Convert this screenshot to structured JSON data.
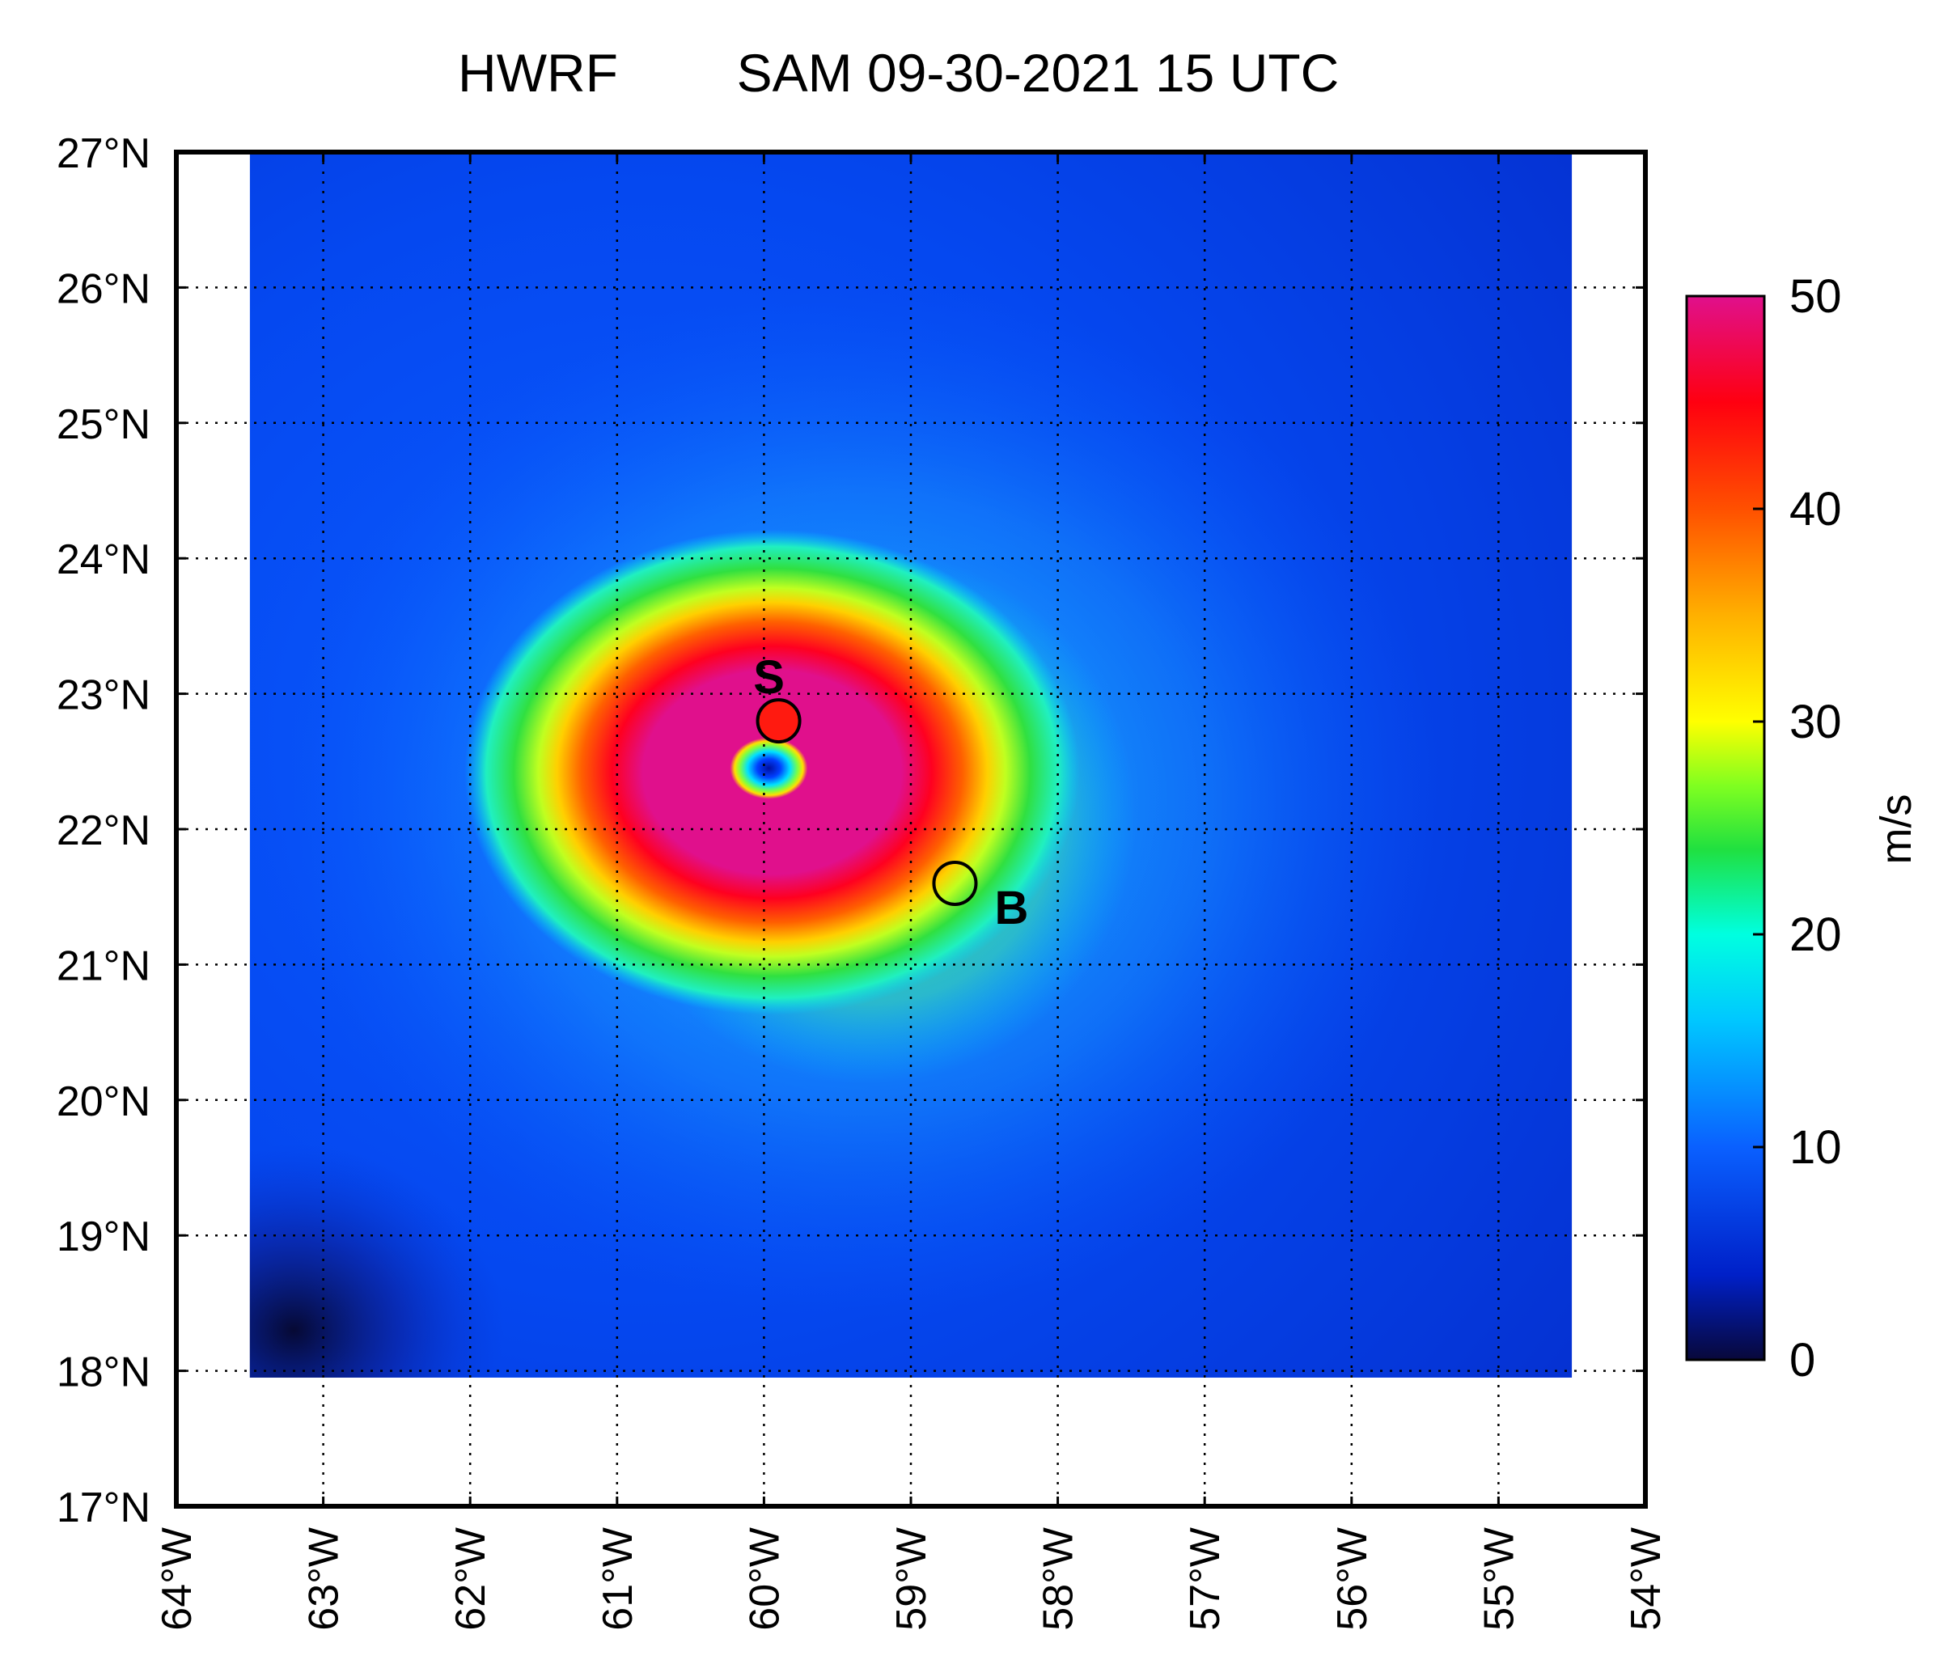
{
  "title": {
    "model": "HWRF",
    "storm": "SAM 09-30-2021 15 UTC"
  },
  "map": {
    "lon_range": [
      -64,
      -54
    ],
    "lat_range": [
      17,
      27
    ],
    "data_extent": {
      "lon": [
        -63.5,
        -54.5
      ],
      "lat": [
        17.95,
        27
      ]
    },
    "lon_ticks": [
      {
        "value": -64,
        "label": "64°W"
      },
      {
        "value": -63,
        "label": "63°W"
      },
      {
        "value": -62,
        "label": "62°W"
      },
      {
        "value": -61,
        "label": "61°W"
      },
      {
        "value": -60,
        "label": "60°W"
      },
      {
        "value": -59,
        "label": "59°W"
      },
      {
        "value": -58,
        "label": "58°W"
      },
      {
        "value": -57,
        "label": "57°W"
      },
      {
        "value": -56,
        "label": "56°W"
      },
      {
        "value": -55,
        "label": "55°W"
      },
      {
        "value": -54,
        "label": "54°W"
      }
    ],
    "lat_ticks": [
      {
        "value": 27,
        "label": "27°N"
      },
      {
        "value": 26,
        "label": "26°N"
      },
      {
        "value": 25,
        "label": "25°N"
      },
      {
        "value": 24,
        "label": "24°N"
      },
      {
        "value": 23,
        "label": "23°N"
      },
      {
        "value": 22,
        "label": "22°N"
      },
      {
        "value": 21,
        "label": "21°N"
      },
      {
        "value": 20,
        "label": "20°N"
      },
      {
        "value": 19,
        "label": "19°N"
      },
      {
        "value": 18,
        "label": "18°N"
      },
      {
        "value": 17,
        "label": "17°N"
      }
    ],
    "gridlines": "dotted",
    "storm_center": {
      "lon": -60.0,
      "lat": 22.45
    },
    "markers": [
      {
        "id": "S",
        "label": "S",
        "lon": -59.9,
        "lat": 22.8,
        "fill": "#ff1a10",
        "label_position": "above"
      },
      {
        "id": "B",
        "label": "B",
        "lon": -58.7,
        "lat": 21.6,
        "fill": "none",
        "label_position": "lower-right"
      }
    ]
  },
  "colorbar": {
    "unit": "m/s",
    "min": 0,
    "max": 50,
    "ticks": [
      {
        "value": 50,
        "label": "50"
      },
      {
        "value": 40,
        "label": "40"
      },
      {
        "value": 30,
        "label": "30"
      },
      {
        "value": 20,
        "label": "20"
      },
      {
        "value": 10,
        "label": "10"
      },
      {
        "value": 0,
        "label": "0"
      }
    ],
    "colors": [
      "#08083a",
      "#0020c8",
      "#0a60ff",
      "#00c8ff",
      "#00ffe0",
      "#20e040",
      "#80ff20",
      "#ffff00",
      "#ffb000",
      "#ff5000",
      "#ff0010",
      "#e0108c"
    ]
  }
}
